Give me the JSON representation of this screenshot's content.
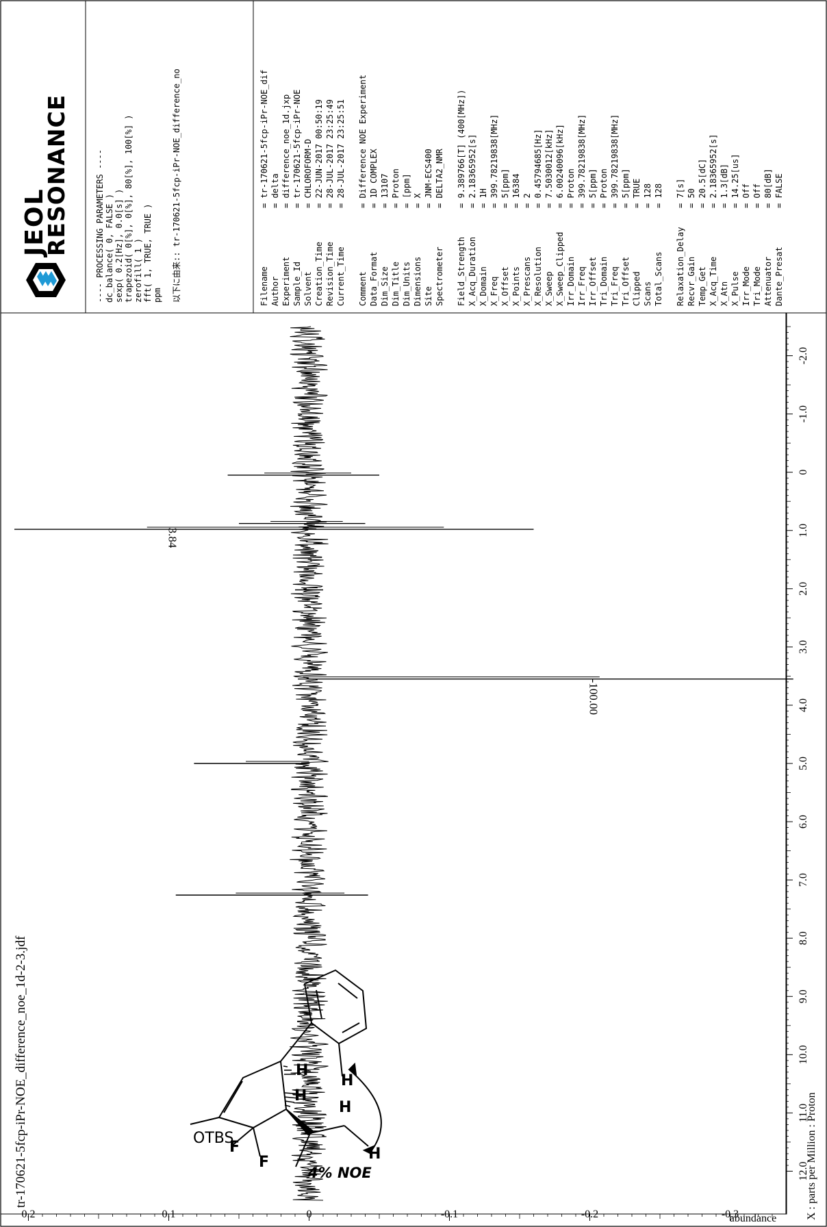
{
  "spectrum": {
    "file_title": "tr-170621-5fcp-iPr-NOE_difference_noe_1d-2-3.jdf",
    "x_axis_label": "X : parts per Million : Proton",
    "y_axis_label": "abundance"
  },
  "chart_data": {
    "type": "line",
    "title": "tr-170621-5fcp-iPr-NOE_difference_noe_1d-2-3.jdf",
    "xlabel": "X : parts per Million : Proton",
    "ylabel": "abundance",
    "xlim": [
      12.5,
      -2.5
    ],
    "ylim": [
      -0.33,
      0.21
    ],
    "x_ticks": [
      12.0,
      11.0,
      10.0,
      9.0,
      8.0,
      7.0,
      6.0,
      5.0,
      4.0,
      3.0,
      2.0,
      1.0,
      0,
      -1.0,
      -2.0
    ],
    "x_tick_labels": [
      "12.0",
      "11.0",
      "10.0",
      "9.0",
      "8.0",
      "7.0",
      "6.0",
      "5.0",
      "4.0",
      "3.0",
      "2.0",
      "1.0",
      "0",
      "-1.0",
      "-2.0"
    ],
    "y_ticks": [
      0.2,
      0.1,
      0,
      -0.1,
      -0.2,
      -0.3
    ],
    "y_tick_labels": [
      "0.2",
      "0.1",
      "0",
      "-0.1",
      "-0.2",
      "-0.3"
    ],
    "peaks": [
      {
        "x": 7.26,
        "up": 0.095,
        "down": -0.042
      },
      {
        "x": 5.0,
        "up": 0.082,
        "down": 0
      },
      {
        "x": 3.55,
        "up": 0.008,
        "down": -0.345
      },
      {
        "x": 2.02,
        "up": 0.01,
        "down": -0.01
      },
      {
        "x": 0.98,
        "up": 0.21,
        "down": -0.16
      },
      {
        "x": 0.88,
        "up": 0.05,
        "down": -0.04
      },
      {
        "x": 0.05,
        "up": 0.058,
        "down": -0.05
      }
    ],
    "integrals": [
      {
        "x": 0.95,
        "label": "3.84"
      },
      {
        "x": 3.55,
        "label": "-100.00"
      }
    ],
    "noise_amplitude": 0.01,
    "series_color": "#000000"
  },
  "header": {
    "logo_line1": "JEOL",
    "logo_line2": "RESONANCE",
    "processing_lines": [
      "---- PROCESSING PARAMETERS ----",
      "dc_balance( 0, FALSE )",
      "sexp( 0.2[Hz], 0.0[s] )",
      "trapezoid( 0[%], 0[%], 80[%], 100[%] )",
      "zerofill( 1 )",
      "fft( 1, TRUE, TRUE )",
      "ppm",
      "",
      "以下に由来:: tr-170621-5fcp-iPr-NOE_difference_no"
    ]
  },
  "parameters": [
    {
      "key": "Filename",
      "value": "= tr-170621-5fcp-iPr-NOE_dif"
    },
    {
      "key": "Author",
      "value": "= delta"
    },
    {
      "key": "Experiment",
      "value": "= difference_noe_1d.jxp"
    },
    {
      "key": "Sample_Id",
      "value": "= tr-170621-5fcp-iPr-NOE"
    },
    {
      "key": "Solvent",
      "value": "= CHLOROFORM-D"
    },
    {
      "key": "Creation_Time",
      "value": "= 22-JUN-2017 00:50:19"
    },
    {
      "key": "Revision_Time",
      "value": "= 28-JUL-2017 23:25:49"
    },
    {
      "key": "Current_Time",
      "value": "= 28-JUL-2017 23:25:51"
    },
    {
      "key": "",
      "value": ""
    },
    {
      "key": "Comment",
      "value": "= Difference NOE Experiment"
    },
    {
      "key": "Data_Format",
      "value": "= 1D COMPLEX"
    },
    {
      "key": "Dim_Size",
      "value": "= 13107"
    },
    {
      "key": "Dim_Title",
      "value": "= Proton"
    },
    {
      "key": "Dim_Units",
      "value": "= [ppm]"
    },
    {
      "key": "Dimensions",
      "value": "= X"
    },
    {
      "key": "Site",
      "value": "= JNM-ECS400"
    },
    {
      "key": "Spectrometer",
      "value": "= DELTA2_NMR"
    },
    {
      "key": "",
      "value": ""
    },
    {
      "key": "Field_Strength",
      "value": "= 9.389766[T] (400[MHz])"
    },
    {
      "key": "X_Acq_Duration",
      "value": "= 2.18365952[s]"
    },
    {
      "key": "X_Domain",
      "value": "= 1H"
    },
    {
      "key": "X_Freq",
      "value": "= 399.78219838[MHz]"
    },
    {
      "key": "X_Offset",
      "value": "= 5[ppm]"
    },
    {
      "key": "X_Points",
      "value": "= 16384"
    },
    {
      "key": "X_Prescans",
      "value": "= 2"
    },
    {
      "key": "X_Resolution",
      "value": "= 0.45794685[Hz]"
    },
    {
      "key": "X_Sweep",
      "value": "= 7.5030012[kHz]"
    },
    {
      "key": "X_Sweep_Clipped",
      "value": "= 6.00240096[kHz]"
    },
    {
      "key": "Irr_Domain",
      "value": "= Proton"
    },
    {
      "key": "Irr_Freq",
      "value": "= 399.78219838[MHz]"
    },
    {
      "key": "Irr_Offset",
      "value": "= 5[ppm]"
    },
    {
      "key": "Tri_Domain",
      "value": "= Proton"
    },
    {
      "key": "Tri_Freq",
      "value": "= 399.78219838[MHz]"
    },
    {
      "key": "Tri_Offset",
      "value": "= 5[ppm]"
    },
    {
      "key": "Clipped",
      "value": "= TRUE"
    },
    {
      "key": "Scans",
      "value": "= 128"
    },
    {
      "key": "Total_Scans",
      "value": "= 128"
    },
    {
      "key": "",
      "value": ""
    },
    {
      "key": "Relaxation_Delay",
      "value": "= 7[s]"
    },
    {
      "key": "Recvr_Gain",
      "value": "= 50"
    },
    {
      "key": "Temp_Get",
      "value": "= 20.5[dC]"
    },
    {
      "key": "X_Acq_Time",
      "value": "= 2.18365952[s]"
    },
    {
      "key": "X_Atn",
      "value": "= 1.3[dB]"
    },
    {
      "key": "X_Pulse",
      "value": "= 14.25[us]"
    },
    {
      "key": "Irr_Mode",
      "value": "= Off"
    },
    {
      "key": "Tri_Mode",
      "value": "= Off"
    },
    {
      "key": "Attenuator",
      "value": "= 80[dB]"
    },
    {
      "key": "Dante_Presat",
      "value": "= FALSE"
    }
  ],
  "structure": {
    "otbs_label": "OTBS",
    "f1_label": "F",
    "f2_label": "F",
    "h_labels": [
      "H",
      "H",
      "H",
      "H",
      "H"
    ],
    "noe_label": "4% NOE"
  }
}
